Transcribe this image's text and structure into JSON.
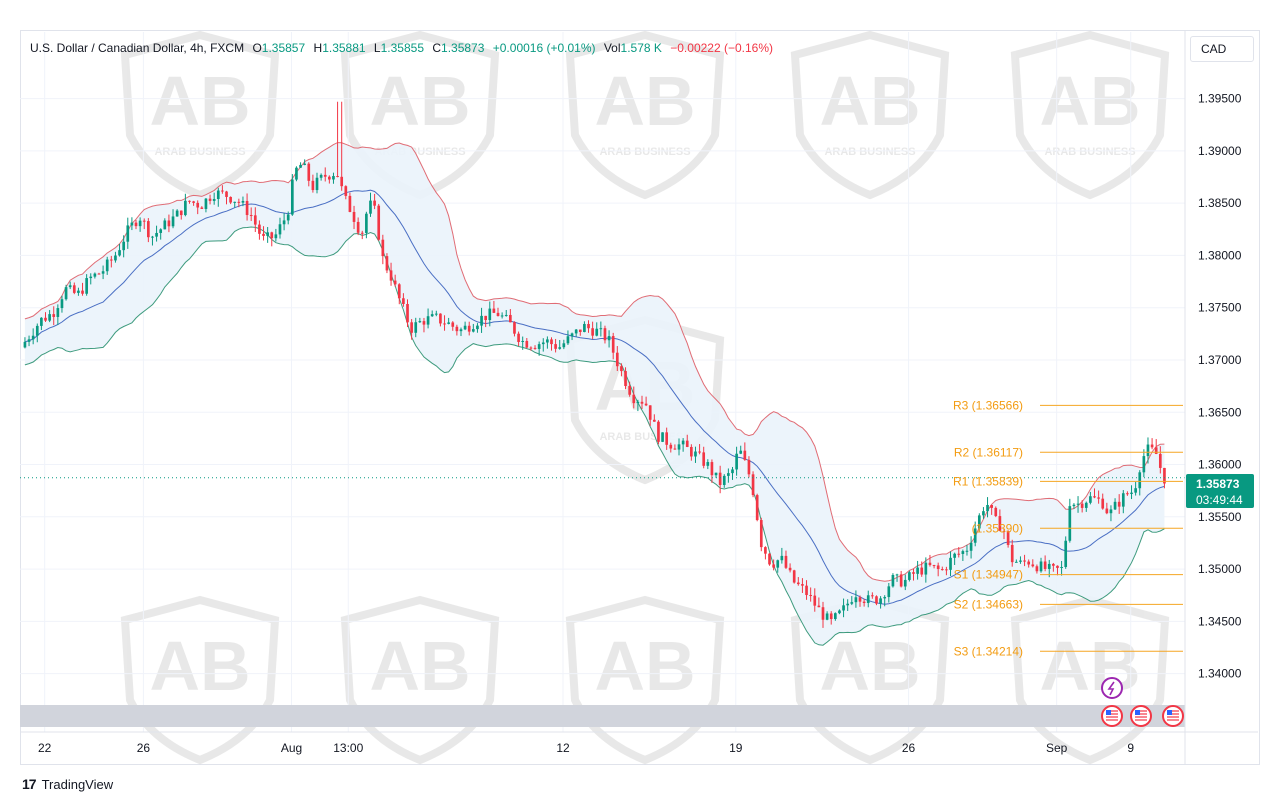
{
  "header": {
    "symbol": "U.S. Dollar / Canadian Dollar, 4h, FXCM",
    "open_label": "O",
    "open": "1.35857",
    "high_label": "H",
    "high": "1.35881",
    "low_label": "L",
    "low": "1.35855",
    "close_label": "C",
    "close": "1.35873",
    "change": "+0.00016 (+0.01%)",
    "vol_label": "Vol",
    "vol": "1.578 K",
    "vol_change": "−0.00222 (−0.16%)"
  },
  "currency": "CAD",
  "price_tag": {
    "price": "1.35873",
    "countdown": "03:49:44"
  },
  "branding": {
    "name": "TradingView",
    "watermark": "ARAB BUSINESS"
  },
  "colors": {
    "up": "#089981",
    "down": "#f23645",
    "upper_band": "#e06c75",
    "lower_band": "#3e9b7e",
    "basis": "#4a6fc4",
    "band_fill": "#eaf3fb",
    "pivot": "#f5a623",
    "pivot_text": "#f39c12"
  },
  "chart_data": {
    "type": "candlestick",
    "indicator": "Bollinger Bands",
    "ylim": [
      1.337,
      1.3985
    ],
    "yticks": [
      "1.39500",
      "1.39000",
      "1.38500",
      "1.38000",
      "1.37500",
      "1.37000",
      "1.36500",
      "1.36000",
      "1.35500",
      "1.35000",
      "1.34500",
      "1.34000"
    ],
    "xticks": [
      "22",
      "26",
      "Aug",
      "13:00",
      "12",
      "19",
      "26",
      "Sep",
      "9"
    ],
    "x_range_days": [
      "Jul 21",
      "Sep 11"
    ],
    "current_price": 1.35873,
    "pivots": [
      {
        "label": "R3",
        "value": "1.36566"
      },
      {
        "label": "R2",
        "value": "1.36117"
      },
      {
        "label": "R1",
        "value": "1.35839"
      },
      {
        "label": "",
        "value": "1.35390"
      },
      {
        "label": "S1",
        "value": "1.34947"
      },
      {
        "label": "S2",
        "value": "1.34663"
      },
      {
        "label": "S3",
        "value": "1.34214"
      }
    ],
    "price_path": [
      [
        21.2,
        1.3712
      ],
      [
        22.0,
        1.3738
      ],
      [
        22.5,
        1.3745
      ],
      [
        23.0,
        1.3768
      ],
      [
        23.5,
        1.3762
      ],
      [
        24.0,
        1.3778
      ],
      [
        24.5,
        1.3785
      ],
      [
        25.0,
        1.3799
      ],
      [
        25.5,
        1.3822
      ],
      [
        26.0,
        1.3838
      ],
      [
        26.5,
        1.3818
      ],
      [
        27.0,
        1.3828
      ],
      [
        27.5,
        1.3838
      ],
      [
        28.0,
        1.3852
      ],
      [
        28.5,
        1.3848
      ],
      [
        29.0,
        1.386
      ],
      [
        29.5,
        1.3858
      ],
      [
        30.0,
        1.3852
      ],
      [
        30.5,
        1.384
      ],
      [
        31.0,
        1.3815
      ],
      [
        31.5,
        1.3818
      ],
      [
        32.0,
        1.384
      ],
      [
        32.3,
        1.388
      ],
      [
        32.6,
        1.3888
      ],
      [
        33.0,
        1.3865
      ],
      [
        33.5,
        1.3876
      ],
      [
        34.0,
        1.388
      ],
      [
        34.3,
        1.3855
      ],
      [
        34.6,
        1.3842
      ],
      [
        35.0,
        1.382
      ],
      [
        35.3,
        1.385
      ],
      [
        35.6,
        1.384
      ],
      [
        35.8,
        1.38
      ],
      [
        36.2,
        1.378
      ],
      [
        36.5,
        1.376
      ],
      [
        37.0,
        1.373
      ],
      [
        37.5,
        1.3738
      ],
      [
        38.0,
        1.374
      ],
      [
        38.5,
        1.3735
      ],
      [
        39.0,
        1.3728
      ],
      [
        39.5,
        1.3735
      ],
      [
        40.0,
        1.3742
      ],
      [
        40.5,
        1.3745
      ],
      [
        41.0,
        1.3735
      ],
      [
        41.5,
        1.3718
      ],
      [
        42.0,
        1.3715
      ],
      [
        42.5,
        1.3718
      ],
      [
        43.0,
        1.3712
      ],
      [
        43.5,
        1.3722
      ],
      [
        44.0,
        1.3732
      ],
      [
        44.5,
        1.3728
      ],
      [
        45.0,
        1.372
      ],
      [
        45.5,
        1.369
      ],
      [
        46.0,
        1.3665
      ],
      [
        46.5,
        1.366
      ],
      [
        47.0,
        1.3628
      ],
      [
        47.5,
        1.362
      ],
      [
        48.0,
        1.3618
      ],
      [
        48.5,
        1.361
      ],
      [
        49.0,
        1.36
      ],
      [
        49.5,
        1.3582
      ],
      [
        50.0,
        1.3592
      ],
      [
        50.3,
        1.3615
      ],
      [
        50.8,
        1.3585
      ],
      [
        51.2,
        1.3525
      ],
      [
        51.6,
        1.3505
      ],
      [
        52.0,
        1.351
      ],
      [
        52.5,
        1.3488
      ],
      [
        53.0,
        1.3478
      ],
      [
        53.5,
        1.3462
      ],
      [
        54.0,
        1.3448
      ],
      [
        54.5,
        1.346
      ],
      [
        55.0,
        1.3478
      ],
      [
        55.5,
        1.347
      ],
      [
        56.0,
        1.3472
      ],
      [
        56.5,
        1.349
      ],
      [
        57.0,
        1.3488
      ],
      [
        57.5,
        1.3498
      ],
      [
        58.0,
        1.3502
      ],
      [
        58.5,
        1.3498
      ],
      [
        59.0,
        1.3512
      ],
      [
        59.5,
        1.3518
      ],
      [
        60.0,
        1.3548
      ],
      [
        60.3,
        1.3565
      ],
      [
        60.7,
        1.3545
      ],
      [
        61.0,
        1.354
      ],
      [
        61.3,
        1.351
      ],
      [
        61.7,
        1.3505
      ],
      [
        62.0,
        1.3508
      ],
      [
        62.5,
        1.3502
      ],
      [
        63.0,
        1.3498
      ],
      [
        63.4,
        1.35
      ],
      [
        63.7,
        1.3565
      ],
      [
        64.0,
        1.3562
      ],
      [
        64.5,
        1.3568
      ],
      [
        65.0,
        1.3565
      ],
      [
        65.3,
        1.3552
      ],
      [
        65.6,
        1.3562
      ],
      [
        66.0,
        1.3572
      ],
      [
        66.3,
        1.3575
      ],
      [
        66.6,
        1.3605
      ],
      [
        66.9,
        1.3615
      ],
      [
        67.2,
        1.361
      ],
      [
        67.5,
        1.3587
      ]
    ]
  }
}
